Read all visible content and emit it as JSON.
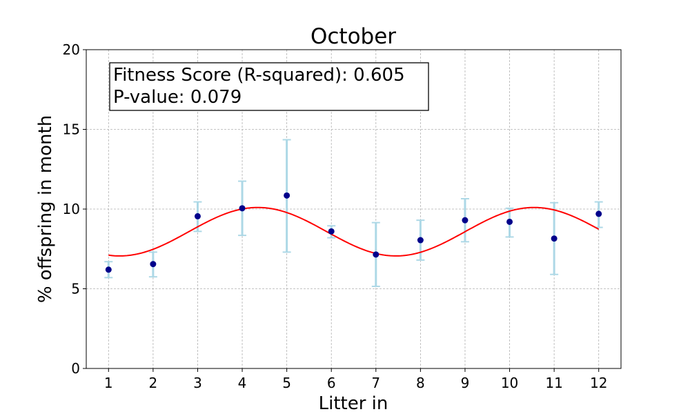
{
  "chart_data": {
    "type": "scatter",
    "title": "October",
    "xlabel": "Litter in",
    "ylabel": "% offspring in month",
    "xlim": [
      0.5,
      12.5
    ],
    "ylim": [
      0,
      20
    ],
    "x_ticks": [
      1,
      2,
      3,
      4,
      5,
      6,
      7,
      8,
      9,
      10,
      11,
      12
    ],
    "y_ticks": [
      0,
      5,
      10,
      15,
      20
    ],
    "grid": true,
    "points": [
      {
        "x": 1,
        "y": 6.2,
        "err_low": 5.7,
        "err_high": 6.7
      },
      {
        "x": 2,
        "y": 6.55,
        "err_low": 5.75,
        "err_high": 7.3
      },
      {
        "x": 3,
        "y": 9.55,
        "err_low": 8.6,
        "err_high": 10.45
      },
      {
        "x": 4,
        "y": 10.05,
        "err_low": 8.35,
        "err_high": 11.75
      },
      {
        "x": 5,
        "y": 10.85,
        "err_low": 7.3,
        "err_high": 14.35
      },
      {
        "x": 6,
        "y": 8.6,
        "err_low": 8.2,
        "err_high": 8.95
      },
      {
        "x": 7,
        "y": 7.15,
        "err_low": 5.15,
        "err_high": 9.15
      },
      {
        "x": 8,
        "y": 8.05,
        "err_low": 6.8,
        "err_high": 9.3
      },
      {
        "x": 9,
        "y": 9.3,
        "err_low": 7.95,
        "err_high": 10.65
      },
      {
        "x": 10,
        "y": 9.2,
        "err_low": 8.25,
        "err_high": 10.05
      },
      {
        "x": 11,
        "y": 8.15,
        "err_low": 5.9,
        "err_high": 10.4
      },
      {
        "x": 12,
        "y": 9.7,
        "err_low": 8.85,
        "err_high": 10.45
      }
    ],
    "fit_curve": {
      "type": "sine",
      "mean": 8.58,
      "amplitude": 1.52,
      "period": 6.2,
      "peak_x": 4.35,
      "x_range": [
        1,
        12
      ]
    },
    "annotation": {
      "line1": "Fitness Score (R-squared): 0.605",
      "line2": "P-value: 0.079"
    },
    "colors": {
      "points": "#00008b",
      "error_bars": "#add8e6",
      "fit_curve": "#ff0000",
      "annotation_border": "#000000"
    }
  }
}
